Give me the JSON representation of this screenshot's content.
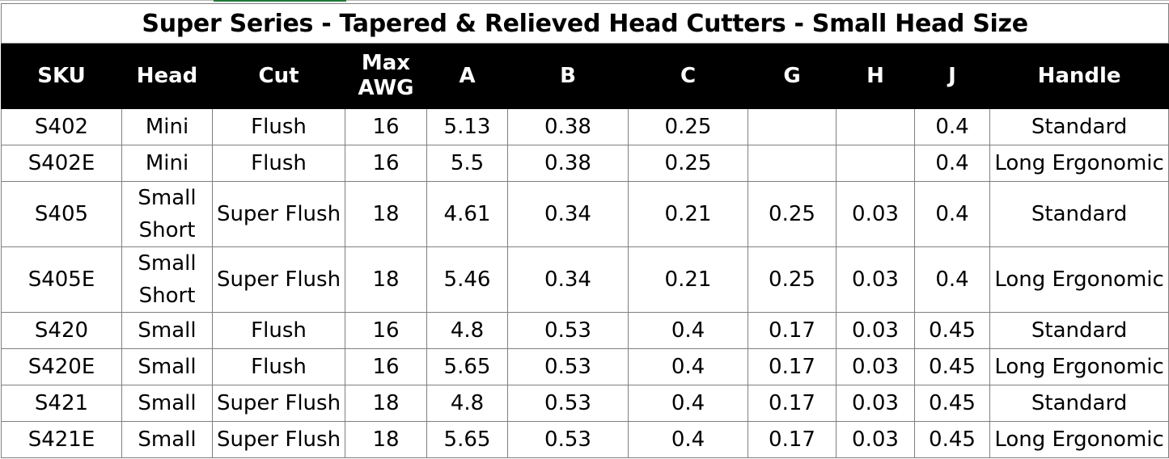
{
  "title": "Super Series - Tapered & Relieved Head Cutters - Small Head Size",
  "headers": {
    "sku": "SKU",
    "head": "Head",
    "cut": "Cut",
    "max_awg_line1": "Max",
    "max_awg_line2": "AWG",
    "a": "A",
    "b": "B",
    "c": "C",
    "g": "G",
    "h": "H",
    "j": "J",
    "handle": "Handle"
  },
  "rows": [
    {
      "sku": "S402",
      "head": "Mini",
      "head2": "",
      "cut": "Flush",
      "awg": "16",
      "a": "5.13",
      "b": "0.38",
      "c": "0.25",
      "g": "",
      "h": "",
      "j": "0.4",
      "handle": "Standard"
    },
    {
      "sku": "S402E",
      "head": "Mini",
      "head2": "",
      "cut": "Flush",
      "awg": "16",
      "a": "5.5",
      "b": "0.38",
      "c": "0.25",
      "g": "",
      "h": "",
      "j": "0.4",
      "handle": "Long Ergonomic"
    },
    {
      "sku": "S405",
      "head": "Small",
      "head2": "Short",
      "cut": "Super Flush",
      "awg": "18",
      "a": "4.61",
      "b": "0.34",
      "c": "0.21",
      "g": "0.25",
      "h": "0.03",
      "j": "0.4",
      "handle": "Standard"
    },
    {
      "sku": "S405E",
      "head": "Small",
      "head2": "Short",
      "cut": "Super Flush",
      "awg": "18",
      "a": "5.46",
      "b": "0.34",
      "c": "0.21",
      "g": "0.25",
      "h": "0.03",
      "j": "0.4",
      "handle": "Long Ergonomic"
    },
    {
      "sku": "S420",
      "head": "Small",
      "head2": "",
      "cut": "Flush",
      "awg": "16",
      "a": "4.8",
      "b": "0.53",
      "c": "0.4",
      "g": "0.17",
      "h": "0.03",
      "j": "0.45",
      "handle": "Standard"
    },
    {
      "sku": "S420E",
      "head": "Small",
      "head2": "",
      "cut": "Flush",
      "awg": "16",
      "a": "5.65",
      "b": "0.53",
      "c": "0.4",
      "g": "0.17",
      "h": "0.03",
      "j": "0.45",
      "handle": "Long Ergonomic"
    },
    {
      "sku": "S421",
      "head": "Small",
      "head2": "",
      "cut": "Super Flush",
      "awg": "18",
      "a": "4.8",
      "b": "0.53",
      "c": "0.4",
      "g": "0.17",
      "h": "0.03",
      "j": "0.45",
      "handle": "Standard"
    },
    {
      "sku": "S421E",
      "head": "Small",
      "head2": "",
      "cut": "Super Flush",
      "awg": "18",
      "a": "5.65",
      "b": "0.53",
      "c": "0.4",
      "g": "0.17",
      "h": "0.03",
      "j": "0.45",
      "handle": "Long Ergonomic"
    }
  ],
  "colors": {
    "header_bg": "#000000",
    "header_text": "#ffffff",
    "grid_line": "#7f7f7f",
    "selection_accent": "#1f7a3b"
  }
}
